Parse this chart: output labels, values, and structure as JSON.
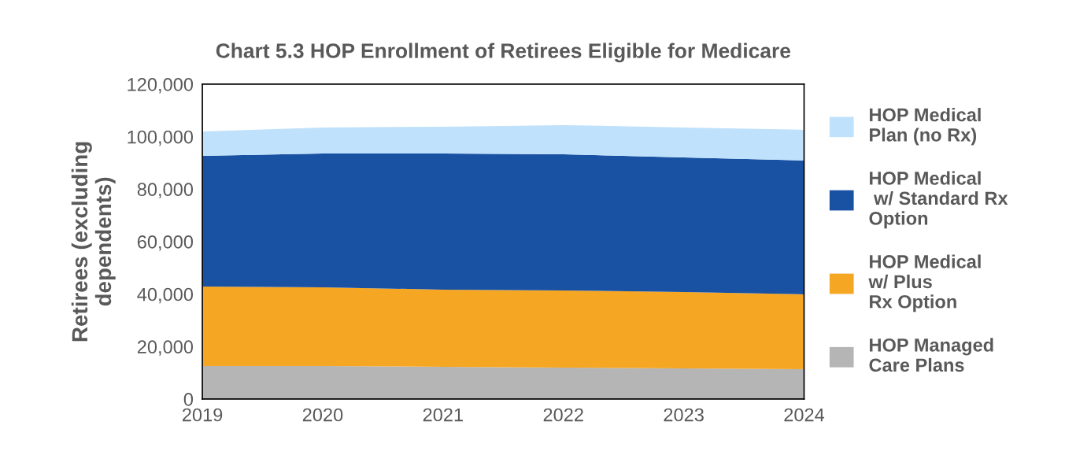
{
  "chart_data": {
    "type": "area",
    "stacked": true,
    "title": "Chart 5.3 HOP Enrollment of Retirees Eligible for Medicare",
    "ylabel": "Retirees (excluding\ndependents)",
    "categories": [
      "2019",
      "2020",
      "2021",
      "2022",
      "2023",
      "2024"
    ],
    "series": [
      {
        "name": "HOP Managed\nCare Plans",
        "color": "#b5b5b5",
        "values": [
          12600,
          12600,
          12300,
          12000,
          11700,
          11400
        ]
      },
      {
        "name": "HOP Medical\nw/ Plus\nRx Option",
        "color": "#f5a623",
        "values": [
          30300,
          30000,
          29400,
          29400,
          29100,
          28500
        ]
      },
      {
        "name": "HOP Medical\n w/ Standard Rx\nOption",
        "color": "#1a52a3",
        "values": [
          49800,
          51000,
          51900,
          51900,
          51300,
          51000
        ]
      },
      {
        "name": "HOP Medical\nPlan (no Rx)",
        "color": "#bfe1fb",
        "values": [
          9300,
          9900,
          10200,
          11100,
          11400,
          11700
        ]
      }
    ],
    "ylim": [
      0,
      120000
    ],
    "yticks": [
      {
        "value": 0,
        "label": "0"
      },
      {
        "value": 20000,
        "label": "20,000"
      },
      {
        "value": 40000,
        "label": "40,000"
      },
      {
        "value": 60000,
        "label": "60,000"
      },
      {
        "value": 80000,
        "label": "80,000"
      },
      {
        "value": 100000,
        "label": "100,000"
      },
      {
        "value": 120000,
        "label": "120,000"
      }
    ],
    "grid": false,
    "legend": "right"
  }
}
